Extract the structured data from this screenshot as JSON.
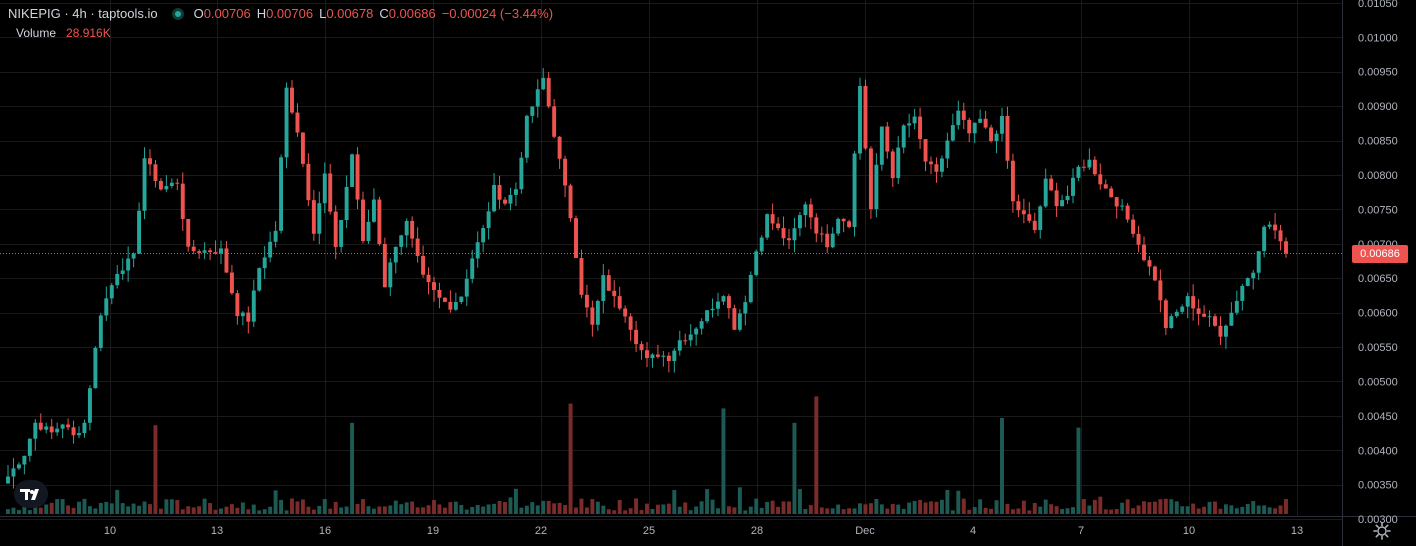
{
  "header": {
    "symbol": "NIKEPIG",
    "interval": "4h",
    "source": "taptools.io",
    "symbol_line": "NIKEPIG · 4h · taptools.io",
    "o_label": "O",
    "o_value": "0.00706",
    "h_label": "H",
    "h_value": "0.00706",
    "l_label": "L",
    "l_value": "0.00678",
    "c_label": "C",
    "c_value": "0.00686",
    "change": "−0.00024 (−3.44%)"
  },
  "volume": {
    "label": "Volume",
    "value": "28.916K"
  },
  "price_axis": {
    "ticks": [
      "0.01050",
      "0.01000",
      "0.00950",
      "0.00900",
      "0.00850",
      "0.00800",
      "0.00750",
      "0.00700",
      "0.00650",
      "0.00600",
      "0.00550",
      "0.00500",
      "0.00450",
      "0.00400",
      "0.00350",
      "0.00300"
    ],
    "last_price": "0.00686"
  },
  "time_axis": {
    "labels": [
      "10",
      "13",
      "16",
      "19",
      "22",
      "25",
      "28",
      "Dec",
      "4",
      "7",
      "10",
      "13"
    ]
  },
  "colors": {
    "up": "#26a69a",
    "down": "#ef5350",
    "up_vol": "#1d5a54",
    "down_vol": "#7a2b2a",
    "grid": "#1a1a1a",
    "background": "#000000"
  },
  "icons": {
    "logo": "tradingview-logo-icon",
    "settings": "gear-icon"
  },
  "chart_data": {
    "type": "candlestick",
    "interval": "4h",
    "ylim": [
      0.0029,
      0.0106
    ],
    "x_tick_labels": [
      "10",
      "13",
      "16",
      "19",
      "22",
      "25",
      "28",
      "Dec",
      "4",
      "7",
      "10",
      "13"
    ],
    "last_close": 0.00686,
    "anchors_close": [
      [
        0,
        0.00362
      ],
      [
        3,
        0.00395
      ],
      [
        5,
        0.0044
      ],
      [
        8,
        0.00425
      ],
      [
        10,
        0.0044
      ],
      [
        12,
        0.0042
      ],
      [
        14,
        0.0044
      ],
      [
        17,
        0.006
      ],
      [
        20,
        0.0066
      ],
      [
        23,
        0.0068
      ],
      [
        25,
        0.00825
      ],
      [
        28,
        0.0078
      ],
      [
        31,
        0.0079
      ],
      [
        33,
        0.0069
      ],
      [
        36,
        0.0069
      ],
      [
        39,
        0.0069
      ],
      [
        42,
        0.006
      ],
      [
        44,
        0.0059
      ],
      [
        46,
        0.00665
      ],
      [
        49,
        0.0072
      ],
      [
        51,
        0.00925
      ],
      [
        53,
        0.00865
      ],
      [
        56,
        0.0072
      ],
      [
        58,
        0.008
      ],
      [
        60,
        0.0069
      ],
      [
        63,
        0.0083
      ],
      [
        65,
        0.007
      ],
      [
        67,
        0.00765
      ],
      [
        69,
        0.0064
      ],
      [
        71,
        0.007
      ],
      [
        73,
        0.0073
      ],
      [
        76,
        0.0065
      ],
      [
        79,
        0.0062
      ],
      [
        81,
        0.0061
      ],
      [
        83,
        0.00625
      ],
      [
        85,
        0.0068
      ],
      [
        87,
        0.0072
      ],
      [
        89,
        0.0078
      ],
      [
        91,
        0.0076
      ],
      [
        93,
        0.0078
      ],
      [
        95,
        0.0088
      ],
      [
        98,
        0.0094
      ],
      [
        101,
        0.0082
      ],
      [
        103,
        0.0074
      ],
      [
        105,
        0.0063
      ],
      [
        107,
        0.0058
      ],
      [
        109,
        0.0065
      ],
      [
        111,
        0.0062
      ],
      [
        113,
        0.006
      ],
      [
        115,
        0.0056
      ],
      [
        117,
        0.0053
      ],
      [
        119,
        0.0054
      ],
      [
        121,
        0.00535
      ],
      [
        123,
        0.0056
      ],
      [
        125,
        0.0057
      ],
      [
        127,
        0.0059
      ],
      [
        129,
        0.0061
      ],
      [
        131,
        0.0063
      ],
      [
        133,
        0.0058
      ],
      [
        135,
        0.0062
      ],
      [
        137,
        0.0069
      ],
      [
        139,
        0.0074
      ],
      [
        141,
        0.0072
      ],
      [
        143,
        0.007
      ],
      [
        146,
        0.0076
      ],
      [
        148,
        0.0072
      ],
      [
        150,
        0.007
      ],
      [
        152,
        0.0074
      ],
      [
        154,
        0.0073
      ],
      [
        156,
        0.0093
      ],
      [
        158,
        0.0075
      ],
      [
        160,
        0.0087
      ],
      [
        162,
        0.008
      ],
      [
        164,
        0.0087
      ],
      [
        166,
        0.0088
      ],
      [
        168,
        0.0082
      ],
      [
        170,
        0.008
      ],
      [
        172,
        0.0085
      ],
      [
        174,
        0.0089
      ],
      [
        176,
        0.0086
      ],
      [
        178,
        0.0088
      ],
      [
        180,
        0.0085
      ],
      [
        182,
        0.0088
      ],
      [
        184,
        0.0076
      ],
      [
        186,
        0.0074
      ],
      [
        188,
        0.0072
      ],
      [
        190,
        0.0079
      ],
      [
        192,
        0.0076
      ],
      [
        194,
        0.0077
      ],
      [
        196,
        0.0081
      ],
      [
        198,
        0.0082
      ],
      [
        200,
        0.0079
      ],
      [
        202,
        0.0077
      ],
      [
        204,
        0.0075
      ],
      [
        206,
        0.0072
      ],
      [
        208,
        0.0068
      ],
      [
        210,
        0.0065
      ],
      [
        212,
        0.0058
      ],
      [
        214,
        0.006
      ],
      [
        216,
        0.0062
      ],
      [
        218,
        0.006
      ],
      [
        220,
        0.0059
      ],
      [
        222,
        0.0057
      ],
      [
        224,
        0.006
      ],
      [
        226,
        0.0064
      ],
      [
        228,
        0.0066
      ],
      [
        230,
        0.0073
      ],
      [
        232,
        0.0072
      ],
      [
        234,
        0.00686
      ]
    ],
    "candle_count": 235,
    "volume_peaks": [
      [
        27,
        0.37
      ],
      [
        63,
        0.38
      ],
      [
        103,
        0.46
      ],
      [
        131,
        0.44
      ],
      [
        144,
        0.38
      ],
      [
        148,
        0.49
      ],
      [
        182,
        0.4
      ],
      [
        196,
        0.36
      ]
    ]
  }
}
